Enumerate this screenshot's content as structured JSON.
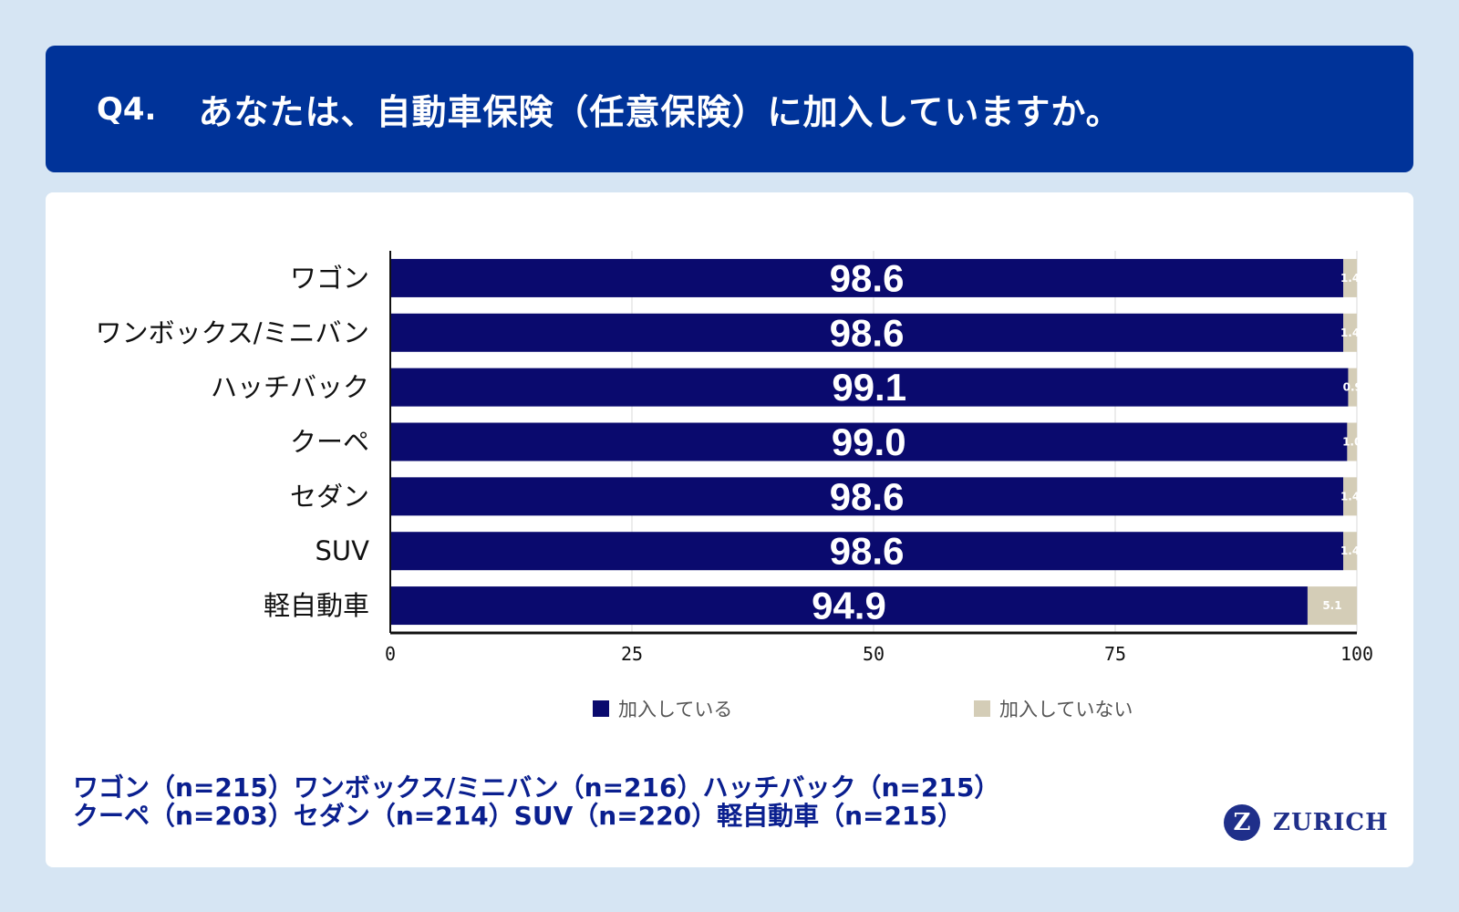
{
  "header": {
    "q_label": "Q4.",
    "title": "あなたは、自動車保険（任意保険）に加入していますか。"
  },
  "colors": {
    "insured": "#0a0a6e",
    "not_insured": "#d4cdb7",
    "header_bg": "#003399"
  },
  "chart_data": {
    "type": "bar",
    "orientation": "horizontal",
    "stacked": true,
    "categories": [
      "ワゴン",
      "ワンボックス/ミニバン",
      "ハッチバック",
      "クーペ",
      "セダン",
      "SUV",
      "軽自動車"
    ],
    "series": [
      {
        "name": "加入している",
        "values": [
          98.6,
          98.6,
          99.1,
          99.0,
          98.6,
          98.6,
          94.9
        ],
        "labels": [
          "98.6",
          "98.6",
          "99.1",
          "99.0",
          "98.6",
          "98.6",
          "94.9"
        ]
      },
      {
        "name": "加入していない",
        "values": [
          1.4,
          1.4,
          0.9,
          1.0,
          1.4,
          1.4,
          5.1
        ],
        "labels": [
          "1.4",
          "1.4",
          "0.9",
          "1.0",
          "1.4",
          "1.4",
          "5.1"
        ]
      }
    ],
    "xlim": [
      0,
      100
    ],
    "xticks": [
      "0",
      "25",
      "50",
      "75",
      "100"
    ],
    "grid": true,
    "legend_position": "bottom"
  },
  "notes": {
    "line1": "ワゴン（n=215）ワンボックス/ミニバン（n=216）ハッチバック（n=215）",
    "line2": "クーペ（n=203）セダン（n=214）SUV（n=220）軽自動車（n=215）"
  },
  "logo": {
    "text": "ZURICH",
    "mark": "Z"
  }
}
